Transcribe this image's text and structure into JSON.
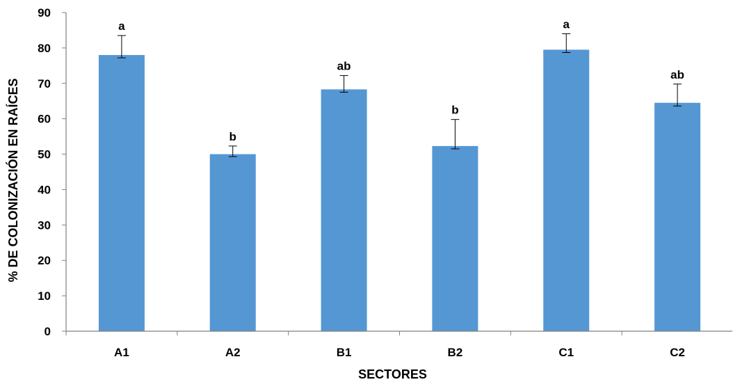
{
  "chart_data": {
    "type": "bar",
    "title": "",
    "xlabel": "SECTORES",
    "ylabel": "% DE COLONIZACIÓN EN RAÍCES",
    "ylim": [
      0,
      90
    ],
    "yticks": [
      0,
      10,
      20,
      30,
      40,
      50,
      60,
      70,
      80,
      90
    ],
    "grid": false,
    "legend": "none",
    "bar_color": "#5597d3",
    "categories": [
      "A1",
      "A2",
      "B1",
      "B2",
      "C1",
      "C2"
    ],
    "values": [
      78,
      50,
      68.3,
      52.3,
      79.5,
      64.5
    ],
    "error_upper": [
      83.5,
      52.3,
      72.2,
      59.8,
      84,
      69.8
    ],
    "error_lower": [
      77.2,
      49.3,
      67.5,
      51.5,
      78.7,
      63.6
    ],
    "significance_labels": [
      "a",
      "b",
      "ab",
      "b",
      "a",
      "ab"
    ]
  }
}
